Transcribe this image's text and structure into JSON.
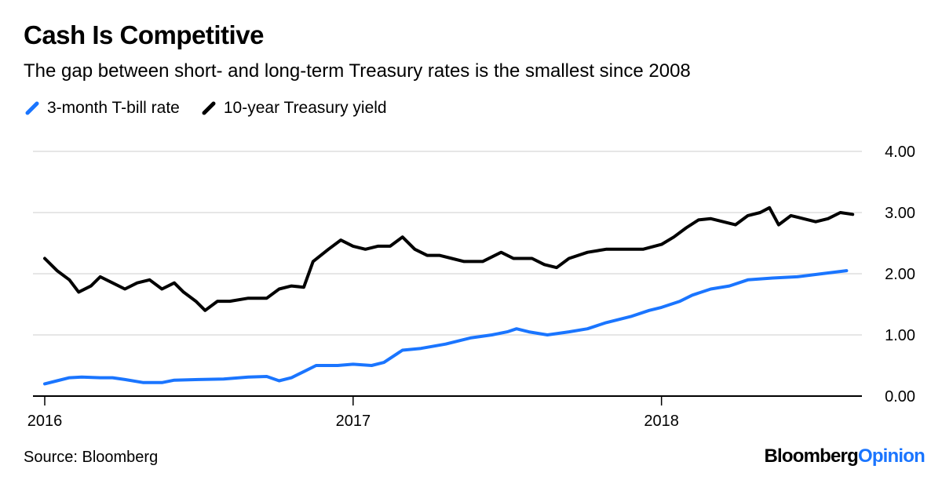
{
  "colors": {
    "series1": "#1a75ff",
    "series2": "#000000",
    "grid": "#e6e6e6",
    "axis": "#000000",
    "brand_accent": "#1a75ff"
  },
  "chart_data": {
    "type": "line",
    "title": "Cash Is Competitive",
    "subtitle": "The gap between short- and long-term Treasury rates is the smallest since 2008",
    "xlabel": "",
    "ylabel": "",
    "xlim": [
      2016.0,
      2018.65
    ],
    "ylim": [
      0,
      4
    ],
    "y_ticks": [
      0,
      1,
      2,
      3,
      4
    ],
    "y_tick_labels": [
      "0.00",
      "1.00",
      "2.00",
      "3.00",
      "4.00"
    ],
    "x_ticks": [
      2016,
      2017,
      2018
    ],
    "x_tick_labels": [
      "2016",
      "2017",
      "2018"
    ],
    "grid": true,
    "legend_position": "top-left",
    "series": [
      {
        "name": "3-month T-bill rate",
        "color": "#1a75ff",
        "points": [
          [
            2016.0,
            0.2
          ],
          [
            2016.04,
            0.25
          ],
          [
            2016.08,
            0.3
          ],
          [
            2016.12,
            0.31
          ],
          [
            2016.18,
            0.3
          ],
          [
            2016.22,
            0.3
          ],
          [
            2016.26,
            0.27
          ],
          [
            2016.32,
            0.22
          ],
          [
            2016.38,
            0.22
          ],
          [
            2016.42,
            0.26
          ],
          [
            2016.5,
            0.27
          ],
          [
            2016.58,
            0.28
          ],
          [
            2016.66,
            0.31
          ],
          [
            2016.72,
            0.32
          ],
          [
            2016.76,
            0.25
          ],
          [
            2016.8,
            0.3
          ],
          [
            2016.84,
            0.4
          ],
          [
            2016.88,
            0.5
          ],
          [
            2016.95,
            0.5
          ],
          [
            2017.0,
            0.52
          ],
          [
            2017.06,
            0.5
          ],
          [
            2017.1,
            0.55
          ],
          [
            2017.16,
            0.75
          ],
          [
            2017.22,
            0.78
          ],
          [
            2017.3,
            0.85
          ],
          [
            2017.38,
            0.95
          ],
          [
            2017.45,
            1.0
          ],
          [
            2017.5,
            1.05
          ],
          [
            2017.53,
            1.1
          ],
          [
            2017.57,
            1.05
          ],
          [
            2017.63,
            1.0
          ],
          [
            2017.7,
            1.05
          ],
          [
            2017.76,
            1.1
          ],
          [
            2017.82,
            1.2
          ],
          [
            2017.9,
            1.3
          ],
          [
            2017.96,
            1.4
          ],
          [
            2018.0,
            1.45
          ],
          [
            2018.06,
            1.55
          ],
          [
            2018.1,
            1.65
          ],
          [
            2018.16,
            1.75
          ],
          [
            2018.22,
            1.8
          ],
          [
            2018.28,
            1.9
          ],
          [
            2018.36,
            1.93
          ],
          [
            2018.44,
            1.95
          ],
          [
            2018.52,
            2.0
          ],
          [
            2018.6,
            2.05
          ]
        ]
      },
      {
        "name": "10-year Treasury yield",
        "color": "#000000",
        "points": [
          [
            2016.0,
            2.25
          ],
          [
            2016.04,
            2.05
          ],
          [
            2016.08,
            1.9
          ],
          [
            2016.11,
            1.7
          ],
          [
            2016.15,
            1.8
          ],
          [
            2016.18,
            1.95
          ],
          [
            2016.22,
            1.85
          ],
          [
            2016.26,
            1.75
          ],
          [
            2016.3,
            1.85
          ],
          [
            2016.34,
            1.9
          ],
          [
            2016.38,
            1.75
          ],
          [
            2016.42,
            1.85
          ],
          [
            2016.45,
            1.7
          ],
          [
            2016.49,
            1.55
          ],
          [
            2016.52,
            1.4
          ],
          [
            2016.56,
            1.55
          ],
          [
            2016.6,
            1.55
          ],
          [
            2016.66,
            1.6
          ],
          [
            2016.72,
            1.6
          ],
          [
            2016.76,
            1.75
          ],
          [
            2016.8,
            1.8
          ],
          [
            2016.84,
            1.78
          ],
          [
            2016.87,
            2.2
          ],
          [
            2016.92,
            2.4
          ],
          [
            2016.96,
            2.55
          ],
          [
            2017.0,
            2.45
          ],
          [
            2017.04,
            2.4
          ],
          [
            2017.08,
            2.45
          ],
          [
            2017.12,
            2.45
          ],
          [
            2017.16,
            2.6
          ],
          [
            2017.2,
            2.4
          ],
          [
            2017.24,
            2.3
          ],
          [
            2017.28,
            2.3
          ],
          [
            2017.32,
            2.25
          ],
          [
            2017.36,
            2.2
          ],
          [
            2017.42,
            2.2
          ],
          [
            2017.48,
            2.35
          ],
          [
            2017.52,
            2.25
          ],
          [
            2017.58,
            2.25
          ],
          [
            2017.62,
            2.15
          ],
          [
            2017.66,
            2.1
          ],
          [
            2017.7,
            2.25
          ],
          [
            2017.76,
            2.35
          ],
          [
            2017.82,
            2.4
          ],
          [
            2017.88,
            2.4
          ],
          [
            2017.94,
            2.4
          ],
          [
            2018.0,
            2.48
          ],
          [
            2018.04,
            2.6
          ],
          [
            2018.08,
            2.75
          ],
          [
            2018.12,
            2.88
          ],
          [
            2018.16,
            2.9
          ],
          [
            2018.2,
            2.85
          ],
          [
            2018.24,
            2.8
          ],
          [
            2018.28,
            2.95
          ],
          [
            2018.32,
            3.0
          ],
          [
            2018.35,
            3.08
          ],
          [
            2018.38,
            2.8
          ],
          [
            2018.42,
            2.95
          ],
          [
            2018.46,
            2.9
          ],
          [
            2018.5,
            2.85
          ],
          [
            2018.54,
            2.9
          ],
          [
            2018.58,
            3.0
          ],
          [
            2018.62,
            2.97
          ]
        ]
      }
    ]
  },
  "legend": {
    "item1": "3-month T-bill rate",
    "item2": "10-year Treasury yield"
  },
  "footer": {
    "source": "Source: Bloomberg",
    "brand_main": "Bloomberg",
    "brand_accent": "Opinion"
  }
}
